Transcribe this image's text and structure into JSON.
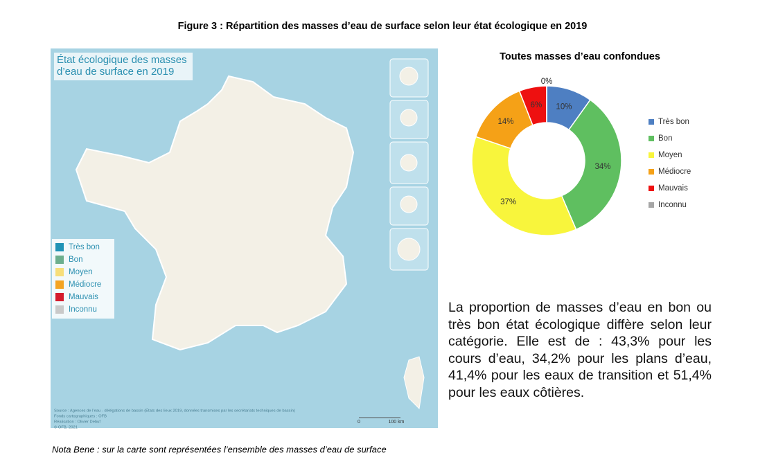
{
  "figure_title": "Figure 3 : Répartition des masses d’eau de surface selon leur état écologique en 2019",
  "map": {
    "title_lines": [
      "État écologique des masses",
      "d’eau de surface"
    ],
    "title_year": "en 2019",
    "legend": [
      {
        "label": "Très bon",
        "color": "#1f93b6"
      },
      {
        "label": "Bon",
        "color": "#6caf8e"
      },
      {
        "label": "Moyen",
        "color": "#f7de7a"
      },
      {
        "label": "Médiocre",
        "color": "#f4a422"
      },
      {
        "label": "Mauvais",
        "color": "#d41b2c"
      },
      {
        "label": "Inconnu",
        "color": "#c9c9c9"
      }
    ],
    "credits": [
      "Source : Agences de l’eau - délégations de bassin (États des lieux 2019, données transmises par les secrétariats techniques de bassin)",
      "Fonds cartographiques : OFB",
      "Réalisation : Olivier Debuf",
      "© OFB, 2021"
    ],
    "scale_labels": [
      "0",
      "100 km"
    ]
  },
  "chart_data": {
    "type": "donut",
    "title": "Toutes masses d’eau confondues",
    "categories": [
      "Très bon",
      "Bon",
      "Moyen",
      "Médiocre",
      "Mauvais",
      "Inconnu"
    ],
    "values": [
      10,
      34,
      37,
      14,
      6,
      0
    ],
    "value_labels": [
      "10%",
      "34%",
      "37%",
      "14%",
      "6%",
      "0%"
    ],
    "colors": [
      "#4e7fc2",
      "#5fbf60",
      "#f8f53c",
      "#f5a117",
      "#ee1010",
      "#a6a6a6"
    ],
    "legend": "right"
  },
  "paragraph": "La proportion de masses d’eau en bon ou très bon état écologique diffère selon leur catégorie. Elle est de : 43,3% pour les cours d’eau, 34,2% pour les plans d’eau, 41,4% pour les eaux de transition et 51,4% pour les eaux côtières.",
  "note": "Nota Bene : sur la carte sont représentées l’ensemble des masses d’eau de surface"
}
